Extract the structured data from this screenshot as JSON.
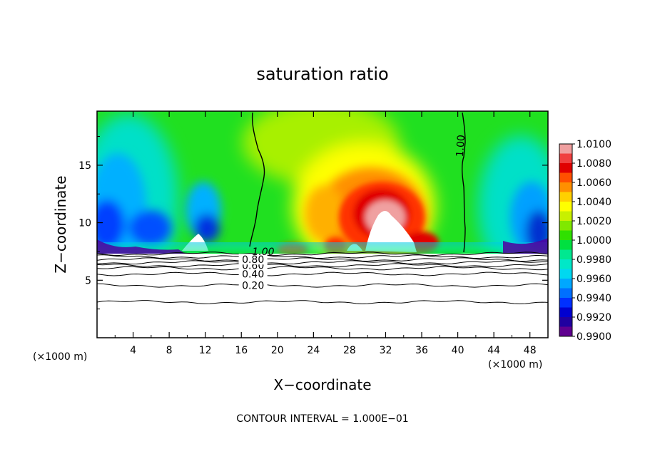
{
  "chart_data": {
    "type": "heatmap",
    "title": "saturation ratio",
    "xlabel": "X−coordinate",
    "ylabel": "Z−coordinate",
    "x_unit_label": "(×1000 m)",
    "x_unit_label_right": "(×1000 m)",
    "footer": "CONTOUR INTERVAL = 1.000E−01",
    "xlim": [
      0,
      50
    ],
    "ylim": [
      0,
      19.7
    ],
    "x_ticks": [
      {
        "value": 4,
        "label": "4"
      },
      {
        "value": 8,
        "label": "8"
      },
      {
        "value": 12,
        "label": "12"
      },
      {
        "value": 16,
        "label": "16"
      },
      {
        "value": 20,
        "label": "20"
      },
      {
        "value": 24,
        "label": "24"
      },
      {
        "value": 28,
        "label": "28"
      },
      {
        "value": 32,
        "label": "32"
      },
      {
        "value": 36,
        "label": "36"
      },
      {
        "value": 40,
        "label": "40"
      },
      {
        "value": 44,
        "label": "44"
      },
      {
        "value": 48,
        "label": "48"
      }
    ],
    "y_ticks": [
      {
        "value": 5,
        "label": "5"
      },
      {
        "value": 10,
        "label": "10"
      },
      {
        "value": 15,
        "label": "15"
      }
    ],
    "colorbar": {
      "labels": [
        "1.0100",
        "1.0080",
        "1.0060",
        "1.0040",
        "1.0020",
        "1.0000",
        "0.9980",
        "0.9960",
        "0.9940",
        "0.9920",
        "0.9900"
      ],
      "colors": [
        "#f0a0a0",
        "#f04040",
        "#e00000",
        "#ff5000",
        "#ff9000",
        "#ffd000",
        "#ffff00",
        "#c8f000",
        "#80e800",
        "#30e000",
        "#00e040",
        "#00e890",
        "#00e8c8",
        "#00d8f0",
        "#00a8ff",
        "#0070ff",
        "#0030ff",
        "#0000d0",
        "#2000a0",
        "#600090"
      ]
    },
    "contours": [
      {
        "level": 0.2,
        "label": "0.20",
        "y": 4.55
      },
      {
        "level": 0.4,
        "label": "0.40",
        "y": 5.55
      },
      {
        "level": 0.6,
        "label": "0.60",
        "y": 6.3
      },
      {
        "level": 0.8,
        "label": "0.80",
        "y": 6.8
      },
      {
        "level": 1.0,
        "label": "1.00",
        "y": 7.3
      }
    ]
  }
}
